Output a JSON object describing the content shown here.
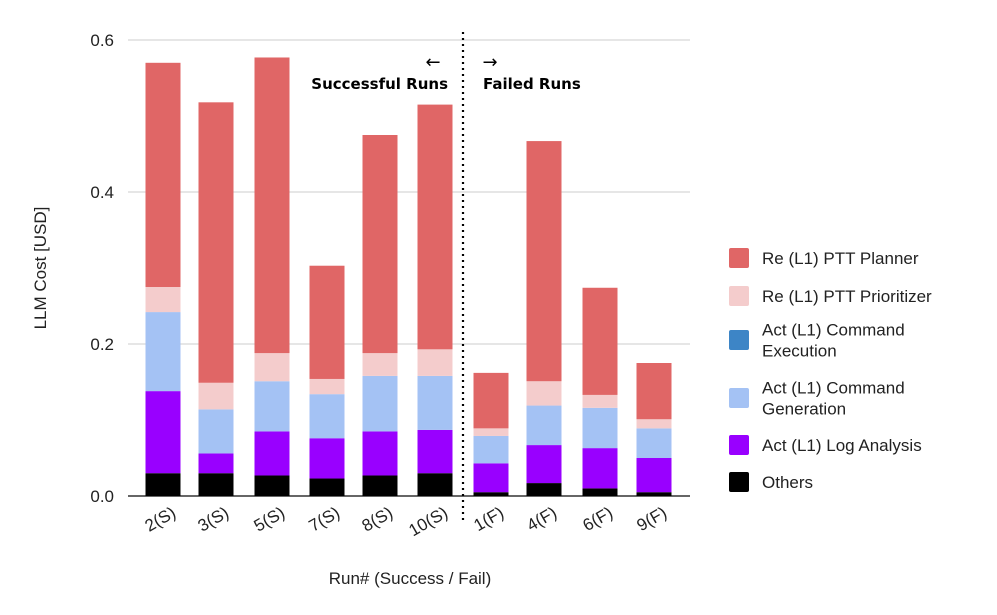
{
  "chart_data": {
    "type": "bar",
    "stacked": true,
    "categories": [
      "2(S)",
      "3(S)",
      "5(S)",
      "7(S)",
      "8(S)",
      "10(S)",
      "1(F)",
      "4(F)",
      "6(F)",
      "9(F)"
    ],
    "series": [
      {
        "name": "Others",
        "color": "#000000",
        "values": [
          0.03,
          0.03,
          0.027,
          0.023,
          0.027,
          0.03,
          0.005,
          0.017,
          0.01,
          0.005
        ]
      },
      {
        "name": "Act (L1) Log Analysis",
        "color": "#9900ff",
        "values": [
          0.108,
          0.026,
          0.058,
          0.053,
          0.058,
          0.057,
          0.038,
          0.05,
          0.053,
          0.045
        ]
      },
      {
        "name": "Act (L1) Command Execution",
        "color": "#3d85c6",
        "values": [
          0,
          0,
          0,
          0,
          0,
          0,
          0,
          0,
          0,
          0
        ]
      },
      {
        "name": "Act (L1) Command Generation",
        "color": "#a4c2f4",
        "values": [
          0.104,
          0.058,
          0.066,
          0.058,
          0.073,
          0.071,
          0.036,
          0.052,
          0.053,
          0.039
        ]
      },
      {
        "name": "Re (L1) PTT Prioritizer",
        "color": "#f4cccc",
        "values": [
          0.033,
          0.035,
          0.037,
          0.02,
          0.03,
          0.035,
          0.01,
          0.032,
          0.017,
          0.012
        ]
      },
      {
        "name": "Re (L1) PTT Planner",
        "color": "#e06666",
        "values": [
          0.295,
          0.369,
          0.389,
          0.149,
          0.287,
          0.322,
          0.073,
          0.316,
          0.141,
          0.074
        ]
      }
    ],
    "legend_order": [
      "Re (L1) PTT Planner",
      "Re (L1) PTT Prioritizer",
      "Act (L1) Command Execution",
      "Act (L1) Command Generation",
      "Act (L1) Log Analysis",
      "Others"
    ],
    "legend_lines": [
      [
        "Re (L1) PTT Planner"
      ],
      [
        "Re (L1) PTT Prioritizer"
      ],
      [
        "Act (L1) Command",
        "Execution"
      ],
      [
        "Act (L1) Command",
        "Generation"
      ],
      [
        "Act (L1) Log Analysis"
      ],
      [
        "Others"
      ]
    ],
    "legend_position": "right",
    "xlabel": "Run# (Success / Fail)",
    "ylabel": "LLM Cost [USD]",
    "ylim": [
      0,
      0.6
    ],
    "yticks": [
      0,
      0.2,
      0.4,
      0.6
    ],
    "ytick_labels": [
      "0.0",
      "0.2",
      "0.4",
      "0.6"
    ],
    "grid": true,
    "annotations": {
      "left_label": "Successful Runs",
      "left_arrow": "←",
      "right_label": "Failed Runs",
      "right_arrow": "→"
    },
    "divider_after_index": 5
  }
}
